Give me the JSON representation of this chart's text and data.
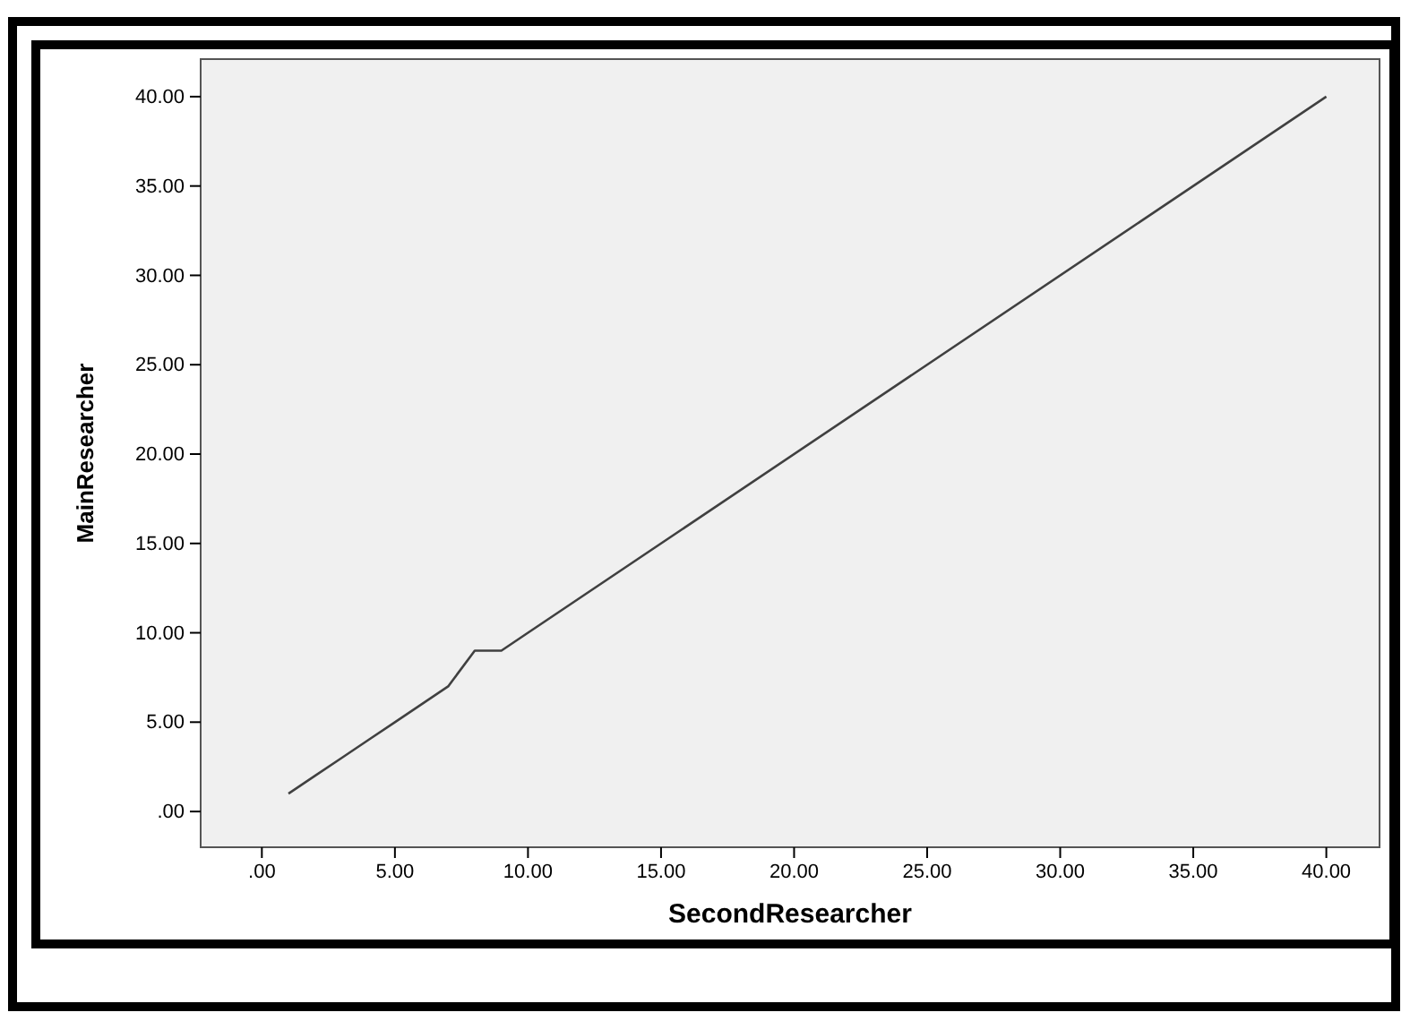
{
  "chart_data": {
    "type": "line",
    "xlabel": "SecondResearcher",
    "ylabel": "MainResearcher",
    "x": [
      1,
      2,
      3,
      4,
      5,
      6,
      7,
      8,
      9,
      10,
      40
    ],
    "series": [
      {
        "color": "#404040",
        "values": [
          1,
          2,
          3,
          4,
          5,
          6,
          7,
          9,
          9,
          10,
          40
        ]
      }
    ],
    "xlim": [
      -2.3,
      42
    ],
    "ylim": [
      -2,
      42.1
    ],
    "xticks": [
      {
        "value": 0,
        "label": ".00"
      },
      {
        "value": 5,
        "label": "5.00"
      },
      {
        "value": 10,
        "label": "10.00"
      },
      {
        "value": 15,
        "label": "15.00"
      },
      {
        "value": 20,
        "label": "20.00"
      },
      {
        "value": 25,
        "label": "25.00"
      },
      {
        "value": 30,
        "label": "30.00"
      },
      {
        "value": 35,
        "label": "35.00"
      },
      {
        "value": 40,
        "label": "40.00"
      }
    ],
    "yticks": [
      {
        "value": 0,
        "label": ".00"
      },
      {
        "value": 5,
        "label": "5.00"
      },
      {
        "value": 10,
        "label": "10.00"
      },
      {
        "value": 15,
        "label": "15.00"
      },
      {
        "value": 20,
        "label": "20.00"
      },
      {
        "value": 25,
        "label": "25.00"
      },
      {
        "value": 30,
        "label": "30.00"
      },
      {
        "value": 35,
        "label": "35.00"
      },
      {
        "value": 40,
        "label": "40.00"
      }
    ],
    "grid": false,
    "marker": "none",
    "line_style": "solid"
  }
}
